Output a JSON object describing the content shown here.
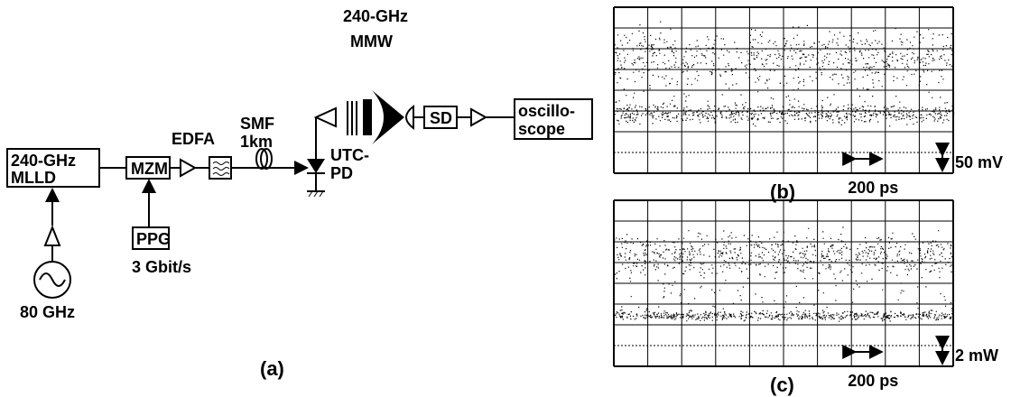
{
  "setup": {
    "mlld": [
      "240-GHz",
      "MLLD"
    ],
    "mzm": "MZM",
    "edfa": "EDFA",
    "smf": [
      "SMF",
      "1km"
    ],
    "ppg": "PPG",
    "ppg_rate": "3 Gbit/s",
    "source": "80 GHz",
    "mmw": [
      "240-GHz",
      "MMW"
    ],
    "pd": [
      "UTC-",
      "PD"
    ],
    "sd": "SD",
    "scope": [
      "oscillo-",
      "scope"
    ],
    "label": "(a)"
  },
  "eye_b": {
    "time_scale": "200 ps",
    "amp_scale": "50 mV",
    "label": "(b)"
  },
  "eye_c": {
    "time_scale": "200 ps",
    "amp_scale": "2 mW",
    "label": "(c)"
  }
}
